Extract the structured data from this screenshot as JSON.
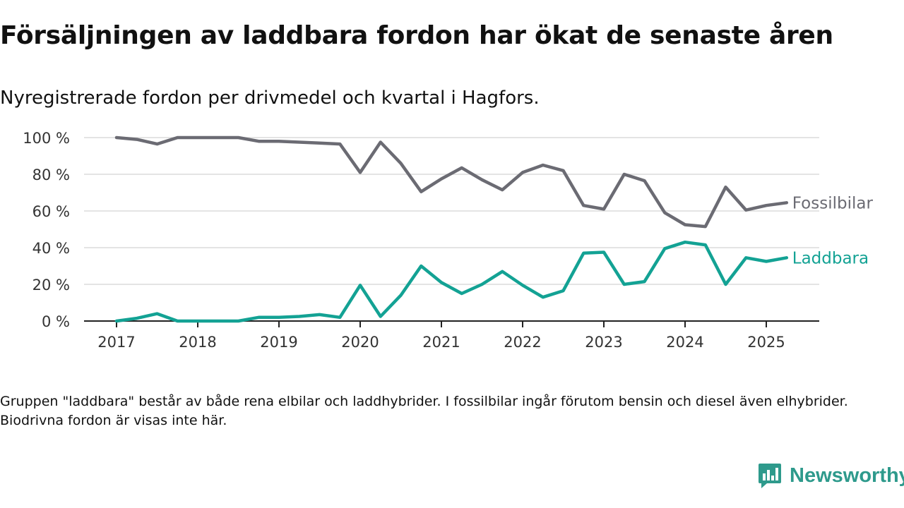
{
  "title": "Försäljningen av laddbara fordon har ökat de senaste åren",
  "subtitle": "Nyregistrerade fordon per drivmedel och kvartal i Hagfors.",
  "note": "Gruppen \"laddbara\" består av både rena elbilar och laddhybrider. I fossilbilar ingår förutom bensin och diesel även elhybrider. Biodrivna fordon är visas inte här.",
  "brand": {
    "name": "Newsworthy",
    "color": "#2e9a8c"
  },
  "chart_data": {
    "type": "line",
    "title": "Försäljningen av laddbara fordon har ökat de senaste åren",
    "subtitle": "Nyregistrerade fordon per drivmedel och kvartal i Hagfors.",
    "xlabel": "",
    "ylabel": "",
    "ylim": [
      0,
      100
    ],
    "yticks": [
      0,
      20,
      40,
      60,
      80,
      100
    ],
    "ytick_labels": [
      "0 %",
      "20 %",
      "40 %",
      "60 %",
      "80 %",
      "100 %"
    ],
    "xticks": [
      2017,
      2018,
      2019,
      2020,
      2021,
      2022,
      2023,
      2024,
      2025
    ],
    "xtick_labels": [
      "2017",
      "2018",
      "2019",
      "2020",
      "2021",
      "2022",
      "2023",
      "2024",
      "2025"
    ],
    "grid": "horizontal",
    "legend": "direct labels at line ends (right)",
    "x": [
      "2017-Q1",
      "2017-Q2",
      "2017-Q3",
      "2017-Q4",
      "2018-Q1",
      "2018-Q2",
      "2018-Q3",
      "2018-Q4",
      "2019-Q1",
      "2019-Q2",
      "2019-Q3",
      "2019-Q4",
      "2020-Q1",
      "2020-Q2",
      "2020-Q3",
      "2020-Q4",
      "2021-Q1",
      "2021-Q2",
      "2021-Q3",
      "2021-Q4",
      "2022-Q1",
      "2022-Q2",
      "2022-Q3",
      "2022-Q4",
      "2023-Q1",
      "2023-Q2",
      "2023-Q3",
      "2023-Q4",
      "2024-Q1",
      "2024-Q2",
      "2024-Q3",
      "2024-Q4",
      "2025-Q1",
      "2025-Q2"
    ],
    "series": [
      {
        "name": "Fossilbilar",
        "color": "#6b6b73",
        "values": [
          100,
          99,
          96.5,
          100,
          100,
          100,
          100,
          98,
          98,
          97.5,
          97,
          96.5,
          81,
          97.5,
          86,
          70.5,
          77.5,
          83.5,
          77,
          71.5,
          81,
          85,
          82,
          63,
          61,
          80,
          76.5,
          59,
          52.5,
          51.5,
          73,
          60.5,
          63,
          64.5
        ]
      },
      {
        "name": "Laddbara",
        "color": "#13a294",
        "values": [
          0,
          1.5,
          4,
          0,
          0,
          0,
          0,
          2,
          2,
          2.5,
          3.5,
          2,
          19.5,
          2.5,
          14,
          30,
          21,
          15,
          20,
          27,
          19.5,
          13,
          16.5,
          37,
          37.5,
          20,
          21.5,
          39.5,
          43,
          41.5,
          20,
          34.5,
          32.5,
          34.5
        ]
      }
    ]
  }
}
